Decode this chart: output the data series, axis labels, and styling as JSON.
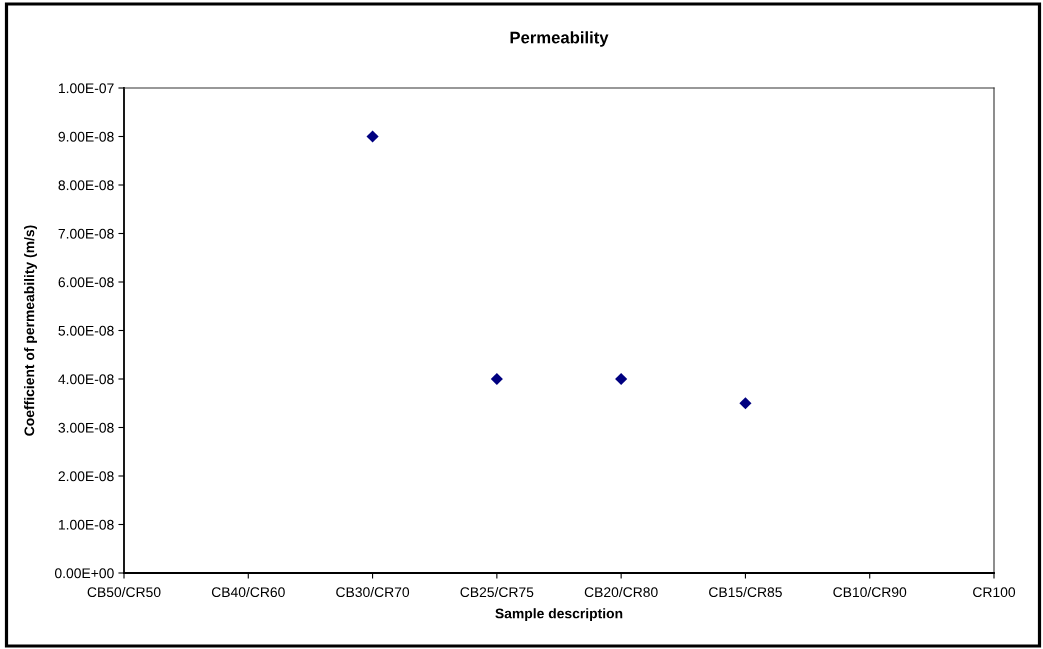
{
  "chart_data": {
    "type": "scatter",
    "title": "Permeability",
    "xlabel": "Sample description",
    "ylabel": "Coefficient of permeability (m/s)",
    "categories": [
      "CB50/CR50",
      "CB40/CR60",
      "CB30/CR70",
      "CB25/CR75",
      "CB20/CR80",
      "CB15/CR85",
      "CB10/CR90",
      "CR100"
    ],
    "values": [
      null,
      null,
      9e-08,
      4e-08,
      4e-08,
      3.5e-08,
      null,
      null
    ],
    "color": "#000080",
    "marker": "diamond",
    "ylim": [
      0,
      1e-07
    ],
    "yticks": [
      {
        "value": 0,
        "label": "0.00E+00"
      },
      {
        "value": 1e-08,
        "label": "1.00E-08"
      },
      {
        "value": 2e-08,
        "label": "2.00E-08"
      },
      {
        "value": 3e-08,
        "label": "3.00E-08"
      },
      {
        "value": 4e-08,
        "label": "4.00E-08"
      },
      {
        "value": 5e-08,
        "label": "5.00E-08"
      },
      {
        "value": 6e-08,
        "label": "6.00E-08"
      },
      {
        "value": 7e-08,
        "label": "7.00E-08"
      },
      {
        "value": 8e-08,
        "label": "8.00E-08"
      },
      {
        "value": 9e-08,
        "label": "9.00E-08"
      },
      {
        "value": 1e-07,
        "label": "1.00E-07"
      }
    ],
    "grid": false
  }
}
